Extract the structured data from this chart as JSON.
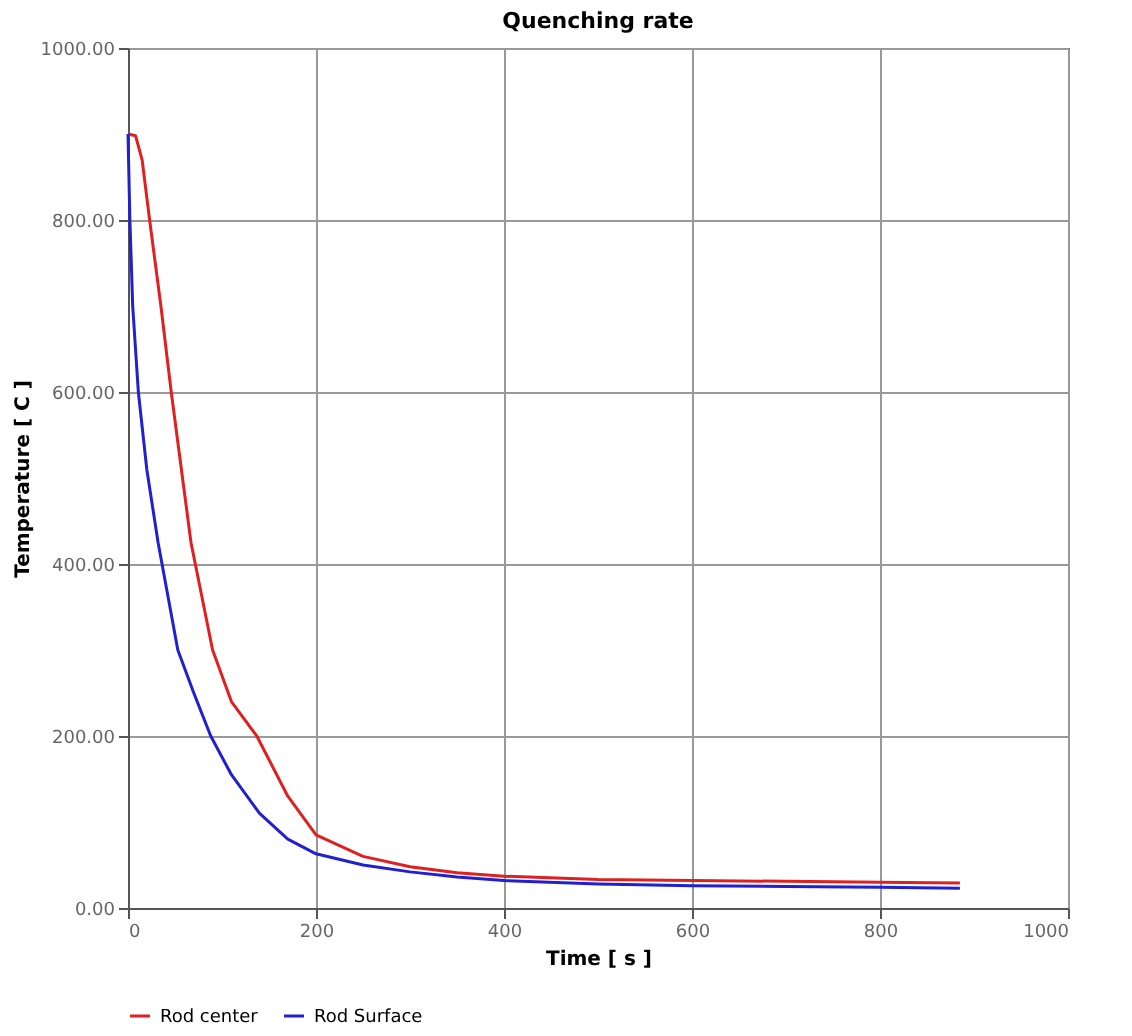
{
  "chart_data": {
    "type": "line",
    "title": "Quenching rate",
    "xlabel": "Time [ s ]",
    "ylabel": "Temperature [ C ]",
    "series": [
      {
        "name": "Rod center",
        "color": "#e02020",
        "x": [
          0,
          8,
          15,
          23,
          35,
          46,
          67,
          90,
          110,
          137,
          170,
          200,
          250,
          300,
          350,
          400,
          500,
          600,
          700,
          800,
          885
        ],
        "values": [
          900,
          898,
          870,
          800,
          700,
          600,
          425,
          300,
          240,
          200,
          130,
          85,
          60,
          48,
          41,
          37,
          33,
          32,
          31,
          30,
          29
        ]
      },
      {
        "name": "Rod Surface",
        "color": "#2020d0",
        "x": [
          0,
          2,
          5,
          11,
          20,
          32,
          53,
          70,
          88,
          110,
          140,
          170,
          200,
          250,
          300,
          350,
          400,
          500,
          600,
          700,
          800,
          885
        ],
        "values": [
          900,
          800,
          700,
          600,
          510,
          425,
          300,
          250,
          200,
          155,
          110,
          80,
          63,
          50,
          42,
          36,
          32,
          28,
          26,
          25,
          24,
          23
        ]
      }
    ],
    "xlim": [
      0,
      1000
    ],
    "xticks": [
      0,
      200,
      400,
      600,
      800,
      1000
    ],
    "ylim": [
      0,
      1000
    ],
    "yticks": [
      {
        "value": 0,
        "label": "0.00"
      },
      {
        "value": 200,
        "label": "200.00"
      },
      {
        "value": 400,
        "label": "400.00"
      },
      {
        "value": 600,
        "label": "600.00"
      },
      {
        "value": 800,
        "label": "800.00"
      },
      {
        "value": 1000,
        "label": "1000.00"
      }
    ],
    "grid": true,
    "legend": "bottom",
    "marker": "none",
    "line_style": "solid"
  }
}
